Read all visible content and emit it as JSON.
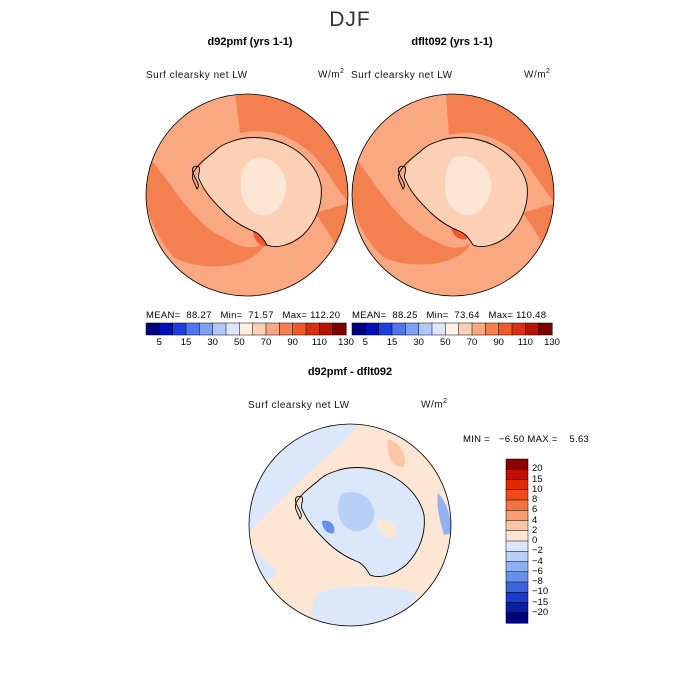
{
  "title": "DJF",
  "panels": [
    {
      "name": "d92pmf",
      "title": "d92pmf (yrs 1-1)",
      "variable": "Surf clearsky net LW",
      "units_base": "W/m",
      "units_exp": "2",
      "stats_text": "MEAN=  88.27   Min=  71.57   Max= 112.20"
    },
    {
      "name": "dflt092",
      "title": "dflt092 (yrs 1-1)",
      "variable": "Surf clearsky net LW",
      "units_base": "W/m",
      "units_exp": "2",
      "stats_text": "MEAN=  88.25   Min=  73.64   Max= 110.48"
    },
    {
      "name": "difference",
      "title": "d92pmf - dflt092",
      "variable": "Surf clearsky net LW",
      "units_base": "W/m",
      "units_exp": "2",
      "stats_text": "MIN =   −6.50 MAX =    5.63"
    }
  ],
  "chart_data": [
    {
      "type": "heatmap",
      "projection": "south-polar-stereographic",
      "title": "d92pmf (yrs 1-1)",
      "variable": "Surf clearsky net LW",
      "units": "W/m2",
      "mean": 88.27,
      "min": 71.57,
      "max": 112.2,
      "colorbar": {
        "ticks": [
          "5",
          "15",
          "30",
          "50",
          "70",
          "90",
          "110",
          "130"
        ],
        "colors": [
          "#00007f",
          "#0010b8",
          "#1e3ee0",
          "#4f74ee",
          "#7fa0f5",
          "#b2c8fb",
          "#dde8ff",
          "#fff2e4",
          "#fcd0b4",
          "#f9a882",
          "#f5804f",
          "#f05a28",
          "#d83010",
          "#b41400",
          "#7e0000"
        ]
      }
    },
    {
      "type": "heatmap",
      "projection": "south-polar-stereographic",
      "title": "dflt092 (yrs 1-1)",
      "variable": "Surf clearsky net LW",
      "units": "W/m2",
      "mean": 88.25,
      "min": 73.64,
      "max": 110.48,
      "colorbar": {
        "ticks": [
          "5",
          "15",
          "30",
          "50",
          "70",
          "90",
          "110",
          "130"
        ],
        "colors": [
          "#00007f",
          "#0010b8",
          "#1e3ee0",
          "#4f74ee",
          "#7fa0f5",
          "#b2c8fb",
          "#dde8ff",
          "#fff2e4",
          "#fcd0b4",
          "#f9a882",
          "#f5804f",
          "#f05a28",
          "#d83010",
          "#b41400",
          "#7e0000"
        ]
      }
    },
    {
      "type": "heatmap",
      "projection": "south-polar-stereographic",
      "title": "d92pmf - dflt092",
      "variable": "Surf clearsky net LW",
      "units": "W/m2",
      "min": -6.5,
      "max": 5.63,
      "colorbar": {
        "orientation": "vertical",
        "ticks": [
          "20",
          "15",
          "10",
          "8",
          "6",
          "4",
          "2",
          "0",
          "−2",
          "−4",
          "−6",
          "−8",
          "−10",
          "−15",
          "−20"
        ],
        "colors": [
          "#8b0000",
          "#c01000",
          "#e02a00",
          "#f04a1a",
          "#f5743e",
          "#f89c70",
          "#fbc6a6",
          "#fde6d4",
          "#dbe8fb",
          "#b8d0f8",
          "#90b2f2",
          "#6890ea",
          "#3c64dc",
          "#1a3ccc",
          "#0a1ca8",
          "#000080"
        ]
      }
    }
  ]
}
